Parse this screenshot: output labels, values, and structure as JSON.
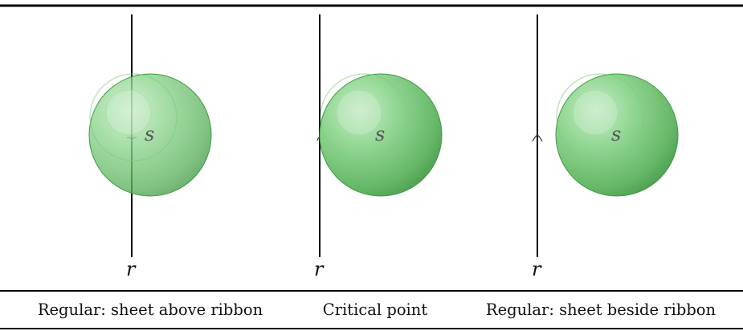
{
  "panels": [
    {
      "line_label": "r",
      "sphere_label": "s",
      "caption": "Regular: sheet above ribbon"
    },
    {
      "line_label": "r",
      "sphere_label": "s",
      "caption": "Critical point"
    },
    {
      "line_label": "r",
      "sphere_label": "s",
      "caption": "Regular: sheet beside ribbon"
    }
  ],
  "colors": {
    "sphere_fill": "#6cc46e",
    "sphere_edge": "#3f9a43",
    "rule": "#000000",
    "ink": "#111111"
  }
}
